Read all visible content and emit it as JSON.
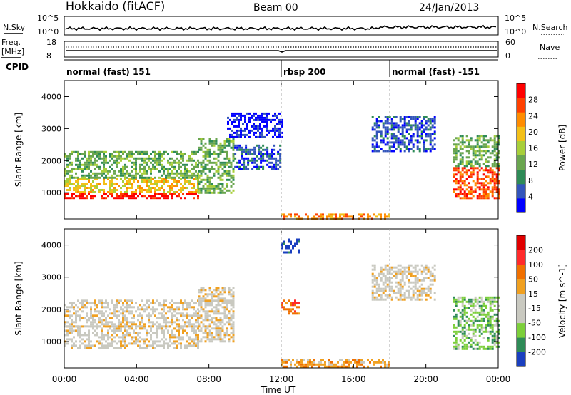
{
  "header": {
    "station": "Hokkaido (fitACF)",
    "beam": "Beam 00",
    "date": "24/Jan/2013"
  },
  "labels": {
    "nsky": "N.Sky",
    "nsearch": "N.Search",
    "freq_line1": "Freq.",
    "freq_line2": "[MHz]",
    "nave": "Nave",
    "cpid": "CPID",
    "exp10": "10^5",
    "exp0": "10^0",
    "freq_hi": "18",
    "freq_lo": "8",
    "nave_hi": "60",
    "nave_lo": "0",
    "xlabel": "Time UT"
  },
  "cpid_segments": [
    {
      "label": "normal (fast) 151",
      "start": 0
    },
    {
      "label": "rbsp 200",
      "start": 12
    },
    {
      "label": "normal (fast) -151",
      "start": 18
    }
  ],
  "chart_data": [
    {
      "type": "heatmap",
      "name": "power",
      "ylabel": "Slant Range [km]",
      "colorbar_label": "Power [dB]",
      "x_ticks": [
        "00:00",
        "04:00",
        "08:00",
        "12:00",
        "16:00",
        "20:00",
        "00:00"
      ],
      "xlim": [
        0,
        24
      ],
      "ylim": [
        180,
        4500
      ],
      "y_ticks": [
        "1000",
        "2000",
        "3000",
        "4000"
      ],
      "colorbar_ticks": [
        "28",
        "24",
        "20",
        "16",
        "12",
        "8",
        "4"
      ],
      "colors": [
        "#0000ff",
        "#3355bb",
        "#2e8b57",
        "#6aa64f",
        "#a8cf3a",
        "#f3c018",
        "#ff8c00",
        "#ff4000",
        "#ff0000"
      ],
      "regions": [
        {
          "x": [
            0,
            7.4
          ],
          "y": [
            800,
            1000
          ],
          "level": 8
        },
        {
          "x": [
            0,
            7.4
          ],
          "y": [
            1000,
            1450
          ],
          "level": 5
        },
        {
          "x": [
            0,
            7.4
          ],
          "y": [
            1450,
            2300
          ],
          "level": 3
        },
        {
          "x": [
            7.4,
            9.4
          ],
          "y": [
            1000,
            2700
          ],
          "level": 3
        },
        {
          "x": [
            9.4,
            12
          ],
          "y": [
            1700,
            2500
          ],
          "level": 1
        },
        {
          "x": [
            9,
            12
          ],
          "y": [
            2700,
            3500
          ],
          "level": 0
        },
        {
          "x": [
            17,
            20.5
          ],
          "y": [
            2300,
            3400
          ],
          "level": 1
        },
        {
          "x": [
            21.5,
            24
          ],
          "y": [
            800,
            1800
          ],
          "level": 7
        },
        {
          "x": [
            21.5,
            24
          ],
          "y": [
            1800,
            2800
          ],
          "level": 3
        },
        {
          "x": [
            12,
            18
          ],
          "y": [
            200,
            350
          ],
          "level": 6
        }
      ]
    },
    {
      "type": "heatmap",
      "name": "velocity",
      "ylabel": "Slant Range [km]",
      "colorbar_label": "Velocity [m s^-1]",
      "x_ticks": [
        "00:00",
        "04:00",
        "08:00",
        "12:00",
        "16:00",
        "20:00",
        "00:00"
      ],
      "xlim": [
        0,
        24
      ],
      "ylim": [
        180,
        4500
      ],
      "y_ticks": [
        "1000",
        "2000",
        "3000",
        "4000"
      ],
      "colorbar_ticks": [
        "200",
        "100",
        "50",
        "15",
        "-15",
        "-50",
        "-100",
        "-200"
      ],
      "colors": [
        "#1a3fbf",
        "#2e8b57",
        "#7ccf3a",
        "#c9c9c0",
        "#c9c9c0",
        "#f0a020",
        "#f07000",
        "#ff2a2a",
        "#e00000"
      ],
      "regions": [
        {
          "x": [
            0,
            7.4
          ],
          "y": [
            800,
            1500
          ],
          "level": 4
        },
        {
          "x": [
            0,
            7.4
          ],
          "y": [
            1500,
            2300
          ],
          "level": 4
        },
        {
          "x": [
            7.4,
            9.4
          ],
          "y": [
            1000,
            2700
          ],
          "level": 4
        },
        {
          "x": [
            12,
            13
          ],
          "y": [
            3800,
            4200
          ],
          "level": 0
        },
        {
          "x": [
            12,
            13
          ],
          "y": [
            1900,
            2300
          ],
          "level": 6
        },
        {
          "x": [
            17,
            20.5
          ],
          "y": [
            2300,
            3400
          ],
          "level": 4
        },
        {
          "x": [
            21.5,
            24
          ],
          "y": [
            800,
            2400
          ],
          "level": 2
        },
        {
          "x": [
            12,
            18
          ],
          "y": [
            200,
            450
          ],
          "level": 5
        }
      ]
    }
  ]
}
